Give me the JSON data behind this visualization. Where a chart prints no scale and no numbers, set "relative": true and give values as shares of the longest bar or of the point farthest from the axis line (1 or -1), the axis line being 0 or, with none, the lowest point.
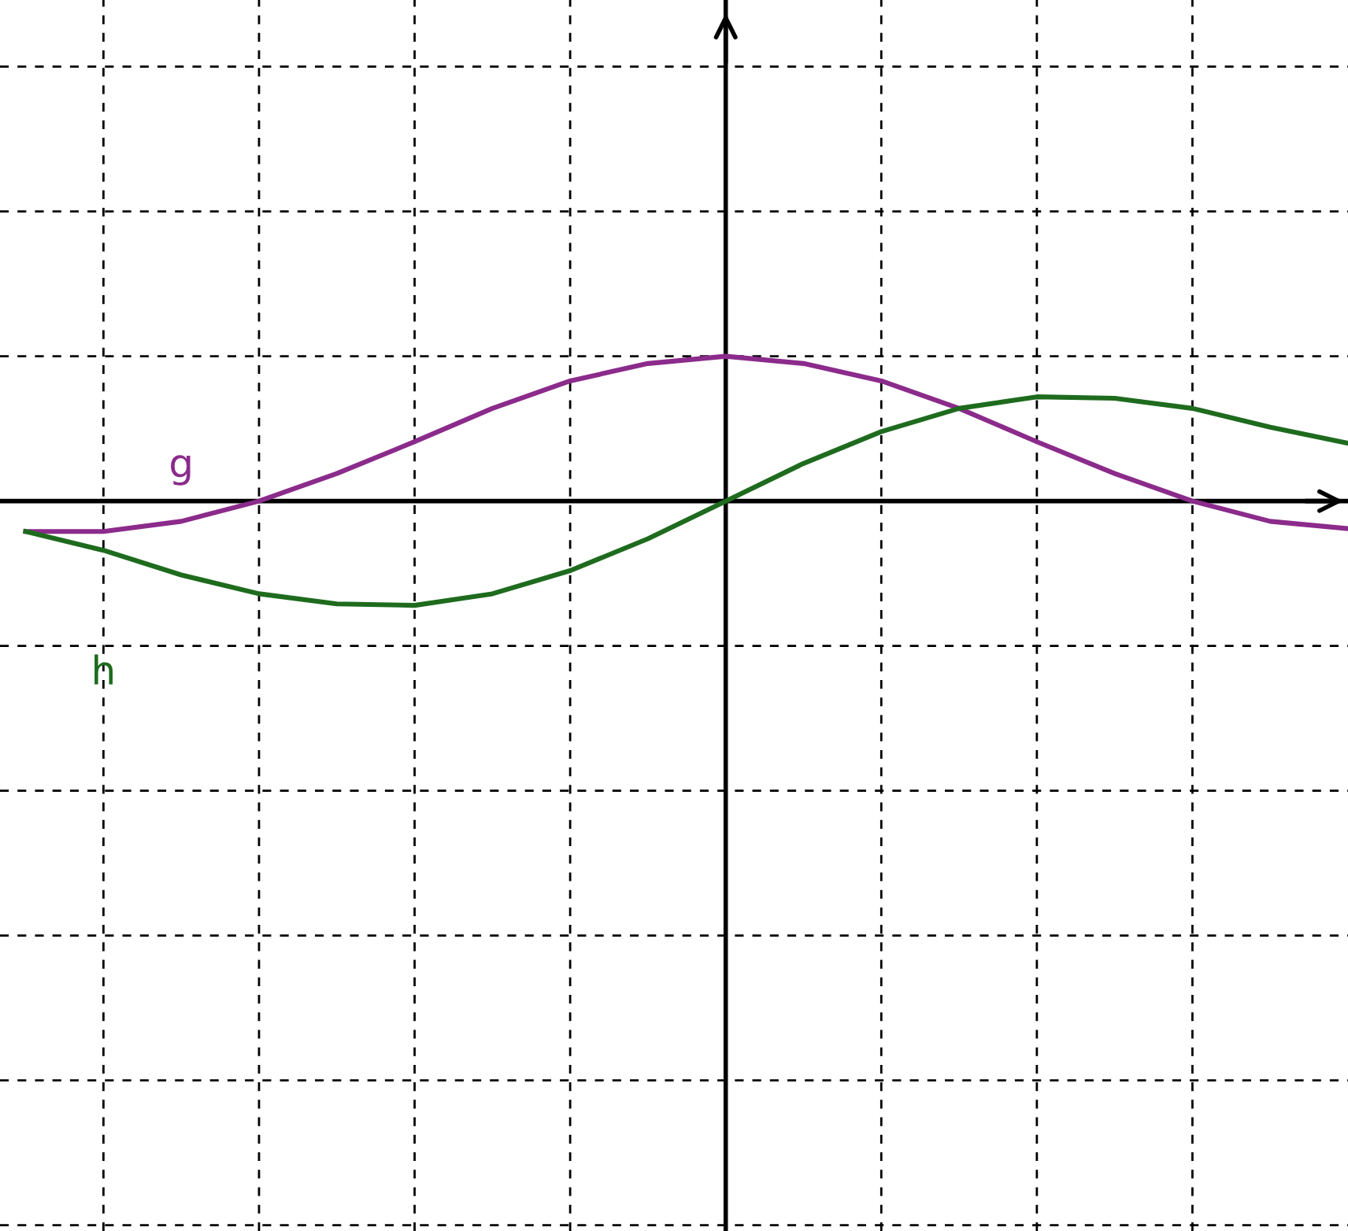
{
  "chart_data": {
    "type": "line",
    "relative": true,
    "grid": true,
    "line_style": "solid",
    "marker": "none",
    "categories": [
      null,
      null,
      null,
      null,
      null,
      null,
      null,
      null,
      null,
      null,
      null,
      null,
      null,
      null,
      null,
      null,
      null,
      null
    ],
    "series": [
      {
        "name": "g",
        "color": "#8b2b8b",
        "values": [
          -0.21,
          -0.21,
          -0.14,
          0,
          0.19,
          0.41,
          0.64,
          0.83,
          0.95,
          1,
          0.95,
          0.83,
          0.64,
          0.41,
          0.19,
          0,
          -0.14,
          -0.19
        ]
      },
      {
        "name": "h",
        "color": "#1e6b1e",
        "values": [
          -0.21,
          -0.34,
          -0.51,
          -0.64,
          -0.71,
          -0.72,
          -0.64,
          -0.48,
          -0.26,
          0,
          0.26,
          0.48,
          0.64,
          0.72,
          0.71,
          0.64,
          0.51,
          0.4
        ]
      }
    ]
  }
}
